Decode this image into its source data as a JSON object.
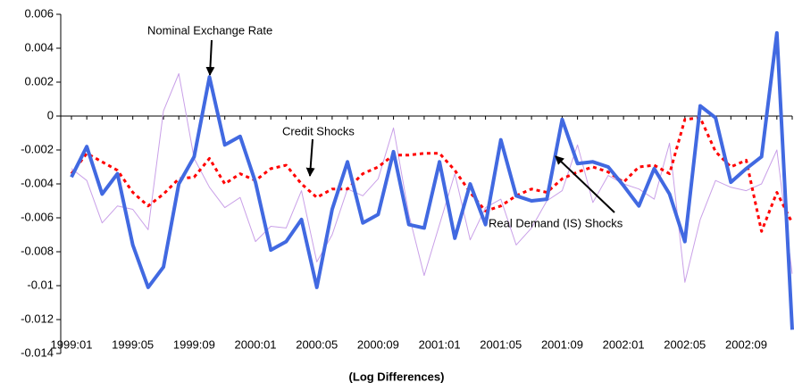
{
  "chart_data": {
    "type": "line",
    "x_label": "(Log Differences)",
    "categories": [
      "1999:01",
      null,
      null,
      null,
      "1999:05",
      null,
      null,
      null,
      "1999:09",
      null,
      null,
      null,
      "2000:01",
      null,
      null,
      null,
      "2000:05",
      null,
      null,
      null,
      "2000:09",
      null,
      null,
      null,
      "2001:01",
      null,
      null,
      null,
      "2001:05",
      null,
      null,
      null,
      "2001:09",
      null,
      null,
      null,
      "2002:01",
      null,
      null,
      null,
      "2002:05",
      null,
      null,
      null,
      "2002:09",
      null,
      null,
      null
    ],
    "series": [
      {
        "name": "Real Demand (IS) Shocks",
        "color": "#c9a0e8",
        "width": 1,
        "dashed": false,
        "values": [
          -0.0031,
          -0.0038,
          -0.0063,
          -0.0053,
          -0.0055,
          -0.0067,
          0.0003,
          0.0025,
          -0.0025,
          -0.0042,
          -0.0054,
          -0.0048,
          -0.0074,
          -0.0065,
          -0.0066,
          -0.0044,
          -0.0086,
          -0.007,
          -0.0043,
          -0.0047,
          -0.0037,
          -0.0007,
          -0.0058,
          -0.0094,
          -0.0064,
          -0.0034,
          -0.0073,
          -0.0054,
          -0.0049,
          -0.0076,
          -0.0066,
          -0.005,
          -0.0044,
          -0.0017,
          -0.0051,
          -0.0035,
          -0.004,
          -0.0043,
          -0.0049,
          -0.0016,
          -0.0098,
          -0.0061,
          -0.0038,
          -0.0042,
          -0.0044,
          -0.004,
          -0.002,
          -0.0093
        ]
      },
      {
        "name": "Credit Shocks",
        "color": "#ff0000",
        "width": 3,
        "dashed": true,
        "values": [
          -0.0034,
          -0.0022,
          -0.0027,
          -0.0032,
          -0.0045,
          -0.0053,
          -0.0046,
          -0.0037,
          -0.0036,
          -0.0025,
          -0.004,
          -0.0034,
          -0.0038,
          -0.0031,
          -0.0029,
          -0.004,
          -0.0048,
          -0.0043,
          -0.0043,
          -0.0034,
          -0.003,
          -0.0023,
          -0.0023,
          -0.0022,
          -0.0022,
          -0.0032,
          -0.0045,
          -0.0056,
          -0.0053,
          -0.0047,
          -0.0043,
          -0.0045,
          -0.0037,
          -0.0033,
          -0.003,
          -0.0033,
          -0.0039,
          -0.003,
          -0.0029,
          -0.0034,
          -0.0002,
          -0.0001,
          -0.0021,
          -0.003,
          -0.0026,
          -0.0068,
          -0.0045,
          -0.0063
        ]
      },
      {
        "name": "Nominal Exchange Rate",
        "color": "#4169e1",
        "width": 4,
        "dashed": false,
        "values": [
          -0.0036,
          -0.0018,
          -0.0046,
          -0.0034,
          -0.0076,
          -0.0101,
          -0.0089,
          -0.004,
          -0.0024,
          0.0023,
          -0.0017,
          -0.0012,
          -0.0039,
          -0.0079,
          -0.0074,
          -0.0061,
          -0.0101,
          -0.0055,
          -0.0027,
          -0.0063,
          -0.0058,
          -0.0021,
          -0.0064,
          -0.0066,
          -0.0027,
          -0.0072,
          -0.004,
          -0.0064,
          -0.0014,
          -0.0047,
          -0.005,
          -0.0049,
          -0.0002,
          -0.0028,
          -0.0027,
          -0.003,
          -0.0041,
          -0.0053,
          -0.0031,
          -0.0046,
          -0.0074,
          0.0006,
          -0.0001,
          -0.0039,
          -0.0031,
          -0.0024,
          0.0049,
          -0.0126
        ]
      }
    ],
    "ylim": [
      -0.014,
      0.006
    ],
    "yticks": [
      -0.014,
      -0.012,
      -0.01,
      -0.008,
      -0.006,
      -0.004,
      -0.002,
      0,
      0.002,
      0.004,
      0.006
    ],
    "grid": false
  }
}
